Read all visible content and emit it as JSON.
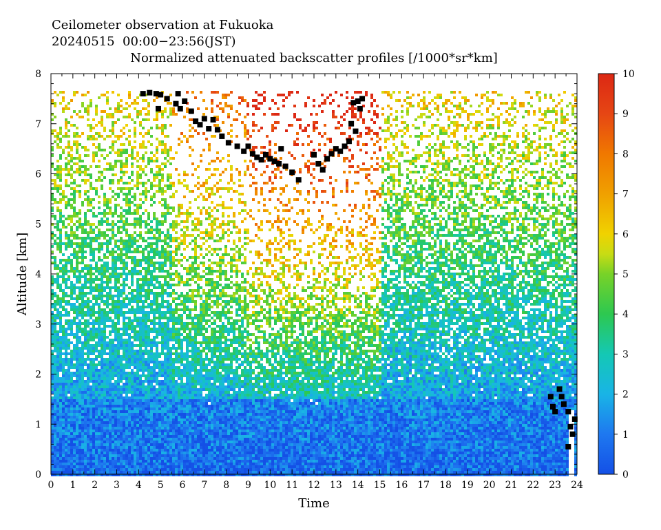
{
  "header": {
    "line1": "Ceilometer observation at Fukuoka",
    "line2": "20240515  00:00−23:56(JST)",
    "title": "Normalized attenuated backscatter profiles [/1000*sr*km]"
  },
  "chart_data": {
    "type": "heatmap",
    "title": "Normalized attenuated backscatter profiles [/1000*sr*km]",
    "xlabel": "Time",
    "ylabel": "Altitude [km]",
    "xlim": [
      0,
      24
    ],
    "ylim": [
      0,
      8
    ],
    "x_ticks": [
      "0",
      "1",
      "2",
      "3",
      "4",
      "5",
      "6",
      "7",
      "8",
      "9",
      "10",
      "11",
      "12",
      "13",
      "14",
      "15",
      "16",
      "17",
      "18",
      "19",
      "20",
      "21",
      "22",
      "23",
      "24"
    ],
    "y_ticks": [
      "0",
      "1",
      "2",
      "3",
      "4",
      "5",
      "6",
      "7",
      "8"
    ],
    "colorbar": {
      "min": 0,
      "max": 10,
      "ticks": [
        "0",
        "1",
        "2",
        "3",
        "4",
        "5",
        "6",
        "7",
        "8",
        "9",
        "10"
      ],
      "stops": [
        {
          "value": 0,
          "color": "#1450e6"
        },
        {
          "value": 1,
          "color": "#1e78f0"
        },
        {
          "value": 2,
          "color": "#19b4e6"
        },
        {
          "value": 3,
          "color": "#14c8b4"
        },
        {
          "value": 4,
          "color": "#2dc850"
        },
        {
          "value": 5,
          "color": "#78d228"
        },
        {
          "value": 5.5,
          "color": "#c8dc14"
        },
        {
          "value": 6,
          "color": "#f0d200"
        },
        {
          "value": 7,
          "color": "#f0a000"
        },
        {
          "value": 8,
          "color": "#f07800"
        },
        {
          "value": 9,
          "color": "#e64614"
        },
        {
          "value": 10,
          "color": "#dc2814"
        }
      ]
    },
    "data_top_km": 7.65,
    "cloud_base_points": [
      {
        "x": 4.2,
        "y": 7.6
      },
      {
        "x": 4.5,
        "y": 7.62
      },
      {
        "x": 4.8,
        "y": 7.6
      },
      {
        "x": 5.0,
        "y": 7.58
      },
      {
        "x": 4.9,
        "y": 7.3
      },
      {
        "x": 5.3,
        "y": 7.5
      },
      {
        "x": 5.8,
        "y": 7.6
      },
      {
        "x": 5.7,
        "y": 7.4
      },
      {
        "x": 5.9,
        "y": 7.3
      },
      {
        "x": 6.1,
        "y": 7.45
      },
      {
        "x": 6.4,
        "y": 7.25
      },
      {
        "x": 6.6,
        "y": 7.05
      },
      {
        "x": 6.8,
        "y": 6.98
      },
      {
        "x": 7.0,
        "y": 7.1
      },
      {
        "x": 7.2,
        "y": 6.9
      },
      {
        "x": 7.4,
        "y": 7.08
      },
      {
        "x": 7.6,
        "y": 6.88
      },
      {
        "x": 7.8,
        "y": 6.75
      },
      {
        "x": 8.1,
        "y": 6.62
      },
      {
        "x": 8.5,
        "y": 6.55
      },
      {
        "x": 8.8,
        "y": 6.45
      },
      {
        "x": 9.0,
        "y": 6.55
      },
      {
        "x": 9.2,
        "y": 6.4
      },
      {
        "x": 9.4,
        "y": 6.33
      },
      {
        "x": 9.6,
        "y": 6.28
      },
      {
        "x": 9.8,
        "y": 6.38
      },
      {
        "x": 10.0,
        "y": 6.3
      },
      {
        "x": 10.2,
        "y": 6.25
      },
      {
        "x": 10.4,
        "y": 6.2
      },
      {
        "x": 10.5,
        "y": 6.5
      },
      {
        "x": 10.7,
        "y": 6.15
      },
      {
        "x": 11.0,
        "y": 6.03
      },
      {
        "x": 11.3,
        "y": 5.88
      },
      {
        "x": 12.0,
        "y": 6.38
      },
      {
        "x": 12.2,
        "y": 6.2
      },
      {
        "x": 12.4,
        "y": 6.08
      },
      {
        "x": 12.6,
        "y": 6.3
      },
      {
        "x": 12.8,
        "y": 6.4
      },
      {
        "x": 13.0,
        "y": 6.5
      },
      {
        "x": 13.2,
        "y": 6.45
      },
      {
        "x": 13.4,
        "y": 6.55
      },
      {
        "x": 13.6,
        "y": 6.65
      },
      {
        "x": 13.8,
        "y": 7.42
      },
      {
        "x": 14.0,
        "y": 7.45
      },
      {
        "x": 14.2,
        "y": 7.5
      },
      {
        "x": 14.1,
        "y": 7.3
      },
      {
        "x": 13.7,
        "y": 7.0
      },
      {
        "x": 13.9,
        "y": 6.85
      },
      {
        "x": 22.8,
        "y": 1.55
      },
      {
        "x": 22.9,
        "y": 1.35
      },
      {
        "x": 23.0,
        "y": 1.25
      },
      {
        "x": 23.2,
        "y": 1.7
      },
      {
        "x": 23.3,
        "y": 1.55
      },
      {
        "x": 23.4,
        "y": 1.4
      },
      {
        "x": 23.6,
        "y": 1.25
      },
      {
        "x": 23.7,
        "y": 0.95
      },
      {
        "x": 23.8,
        "y": 0.8
      },
      {
        "x": 23.9,
        "y": 1.1
      },
      {
        "x": 23.6,
        "y": 0.55
      }
    ]
  }
}
